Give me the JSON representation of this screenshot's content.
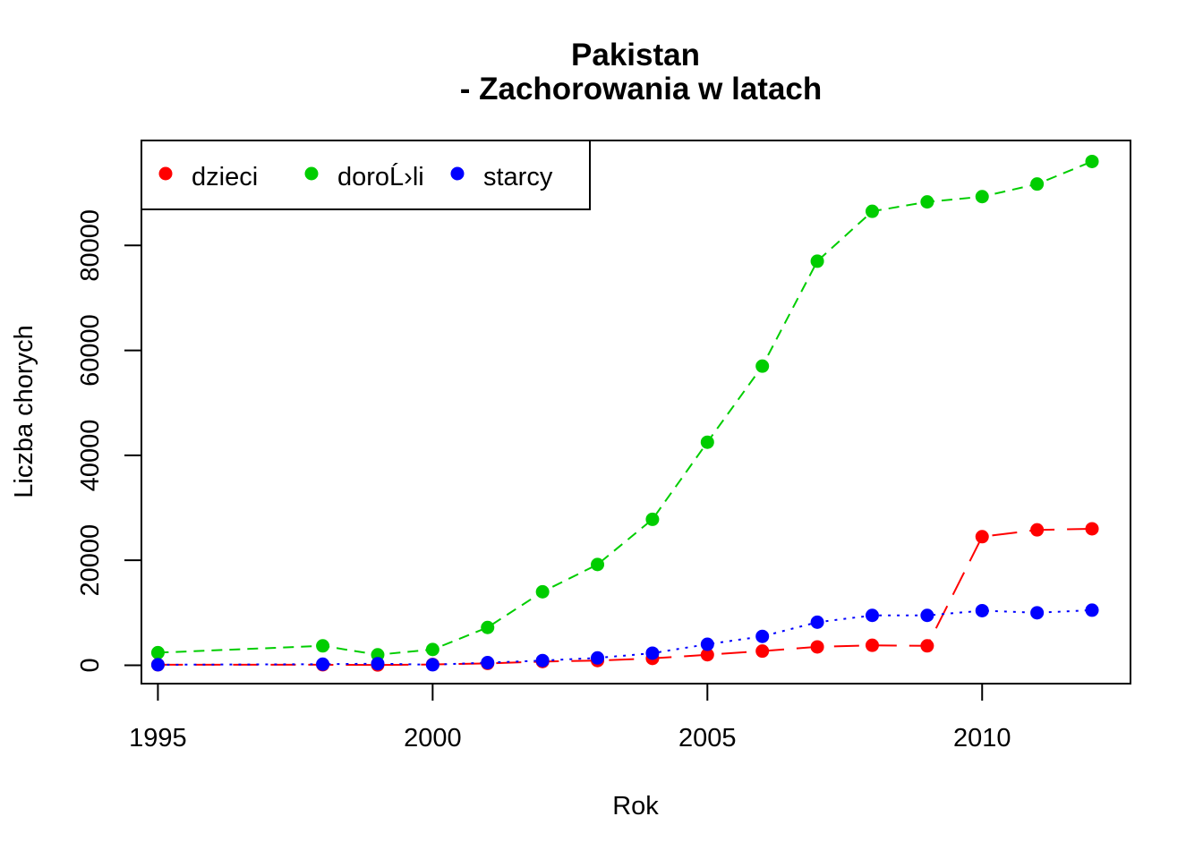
{
  "chart_data": {
    "type": "line",
    "title_line1": "Pakistan",
    "title_line2": "- Zachorowania w latach",
    "xlabel": "Rok",
    "ylabel": "Liczba chorych",
    "xlim": [
      1994.7,
      2012.7
    ],
    "ylim": [
      -3500,
      100000
    ],
    "x_ticks": [
      1995,
      2000,
      2005,
      2010
    ],
    "x_tick_labels": [
      "1995",
      "2000",
      "2005",
      "2010"
    ],
    "y_ticks": [
      0,
      20000,
      40000,
      60000,
      80000
    ],
    "y_tick_labels": [
      "0",
      "20000",
      "40000",
      "60000",
      "80000"
    ],
    "legend_position": "top-left",
    "series": [
      {
        "name": "dzieci",
        "color": "#ff0000",
        "line": "longdash",
        "points": [
          [
            1995,
            100
          ],
          [
            1998,
            100
          ],
          [
            1999,
            50
          ],
          [
            2000,
            150
          ],
          [
            2001,
            350
          ],
          [
            2002,
            700
          ],
          [
            2003,
            900
          ],
          [
            2004,
            1300
          ],
          [
            2005,
            2000
          ],
          [
            2006,
            2700
          ],
          [
            2007,
            3500
          ],
          [
            2008,
            3800
          ],
          [
            2009,
            3700
          ],
          [
            2010,
            24500
          ],
          [
            2011,
            25800
          ],
          [
            2012,
            26000
          ]
        ]
      },
      {
        "name": "doroĹ›li",
        "color": "#00cd00",
        "line": "dashed",
        "points": [
          [
            1995,
            2400
          ],
          [
            1998,
            3700
          ],
          [
            1999,
            2000
          ],
          [
            2000,
            3000
          ],
          [
            2001,
            7200
          ],
          [
            2002,
            14000
          ],
          [
            2003,
            19200
          ],
          [
            2004,
            27800
          ],
          [
            2005,
            42500
          ],
          [
            2006,
            57000
          ],
          [
            2007,
            77000
          ],
          [
            2008,
            86500
          ],
          [
            2009,
            88300
          ],
          [
            2010,
            89300
          ],
          [
            2011,
            91700
          ],
          [
            2012,
            96000
          ]
        ]
      },
      {
        "name": "starcy",
        "color": "#0000ff",
        "line": "dotted",
        "points": [
          [
            1995,
            100
          ],
          [
            1998,
            200
          ],
          [
            1999,
            300
          ],
          [
            2000,
            100
          ],
          [
            2001,
            500
          ],
          [
            2002,
            900
          ],
          [
            2003,
            1400
          ],
          [
            2004,
            2300
          ],
          [
            2005,
            4000
          ],
          [
            2006,
            5500
          ],
          [
            2007,
            8200
          ],
          [
            2008,
            9500
          ],
          [
            2009,
            9500
          ],
          [
            2010,
            10400
          ],
          [
            2011,
            10000
          ],
          [
            2012,
            10500
          ]
        ]
      }
    ]
  }
}
